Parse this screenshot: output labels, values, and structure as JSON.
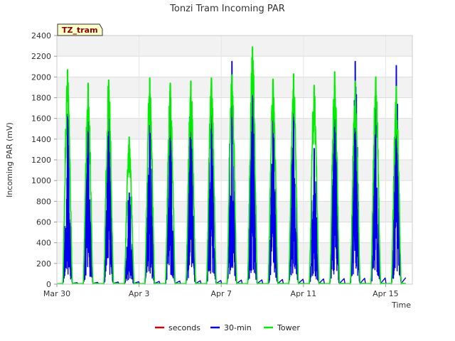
{
  "chart_data": {
    "type": "line",
    "title": "Tonzi Tram Incoming PAR",
    "xlabel": "Time",
    "ylabel": "Incoming PAR (mV)",
    "ylim": [
      0,
      2400
    ],
    "xlim": [
      0,
      17.3
    ],
    "yticks": [
      0,
      200,
      400,
      600,
      800,
      1000,
      1200,
      1400,
      1600,
      1800,
      2000,
      2200,
      2400
    ],
    "xticks": [
      {
        "label": "Mar 30",
        "day": 0
      },
      {
        "label": "Apr 3",
        "day": 4
      },
      {
        "label": "Apr 7",
        "day": 8
      },
      {
        "label": "Apr 11",
        "day": 12
      },
      {
        "label": "Apr 15",
        "day": 16
      }
    ],
    "grid": true,
    "legend_position": "bottom",
    "annotation": "TZ_tram",
    "series": [
      {
        "name": "seconds",
        "color": "#cc0000",
        "daily_peaks": []
      },
      {
        "name": "30-min",
        "color": "#0000ee",
        "daily_peaks": [
          1640,
          1810,
          1840,
          880,
          1840,
          1830,
          1860,
          1820,
          2150,
          2120,
          1780,
          1840,
          1310,
          1850,
          2150,
          1820,
          2110
        ]
      },
      {
        "name": "Tower",
        "color": "#00ee00",
        "daily_peaks": [
          2070,
          1940,
          1970,
          1420,
          1990,
          1940,
          1960,
          1990,
          2020,
          2290,
          1980,
          2030,
          1920,
          2050,
          1960,
          2000,
          1910
        ]
      }
    ]
  }
}
